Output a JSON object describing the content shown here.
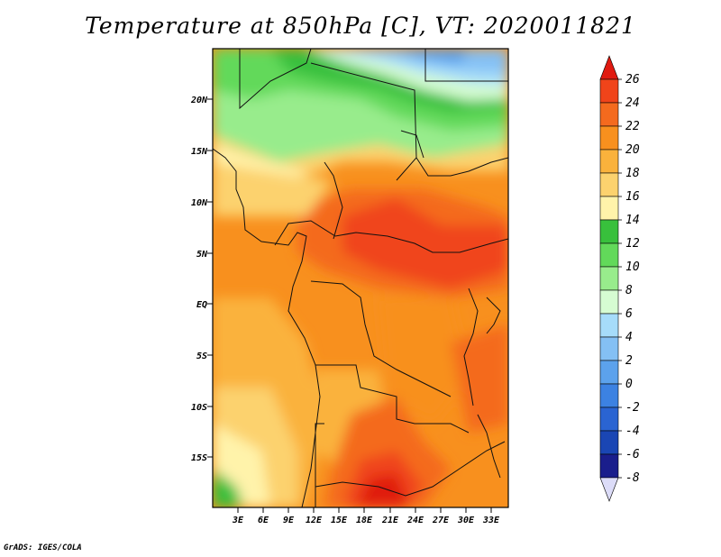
{
  "title": "Temperature at 850hPa [C], VT: 2020011821",
  "footer": "GrADS: IGES/COLA",
  "lat_labels": [
    "20N",
    "15N",
    "10N",
    "5N",
    "EQ",
    "5S",
    "10S",
    "15S"
  ],
  "lon_labels": [
    "3E",
    "6E",
    "9E",
    "12E",
    "15E",
    "18E",
    "21E",
    "24E",
    "27E",
    "30E",
    "33E"
  ],
  "colorbar": {
    "labels": [
      "26",
      "24",
      "22",
      "20",
      "18",
      "16",
      "14",
      "12",
      "10",
      "8",
      "6",
      "4",
      "2",
      "0",
      "-2",
      "-4",
      "-6",
      "-8"
    ],
    "colors": [
      "#e01a10",
      "#f0441a",
      "#f46a1e",
      "#f8901e",
      "#fab23c",
      "#fcd26e",
      "#fff3aa",
      "#38c03c",
      "#62d95a",
      "#98ec8c",
      "#d6fcd2",
      "#a6dcfa",
      "#84c0f4",
      "#5ca2ec",
      "#3c82e2",
      "#2a64d2",
      "#1a46b4",
      "#1a1e8c",
      "#dcdcf8"
    ]
  },
  "chart_data": {
    "type": "heatmap",
    "title": "Temperature at 850hPa [C], VT: 2020011821",
    "variable": "Temperature at 850hPa",
    "units": "C",
    "valid_time": "2020011821",
    "lon_range": [
      0,
      35
    ],
    "lat_range": [
      -20,
      24
    ],
    "x_ticks": [
      "3E",
      "6E",
      "9E",
      "12E",
      "15E",
      "18E",
      "21E",
      "24E",
      "27E",
      "30E",
      "33E"
    ],
    "y_ticks": [
      "20N",
      "15N",
      "10N",
      "5N",
      "EQ",
      "5S",
      "10S",
      "15S"
    ],
    "levels": [
      -8,
      -6,
      -4,
      -2,
      0,
      2,
      4,
      6,
      8,
      10,
      12,
      14,
      16,
      18,
      20,
      22,
      24,
      26
    ],
    "legend": "right"
  }
}
